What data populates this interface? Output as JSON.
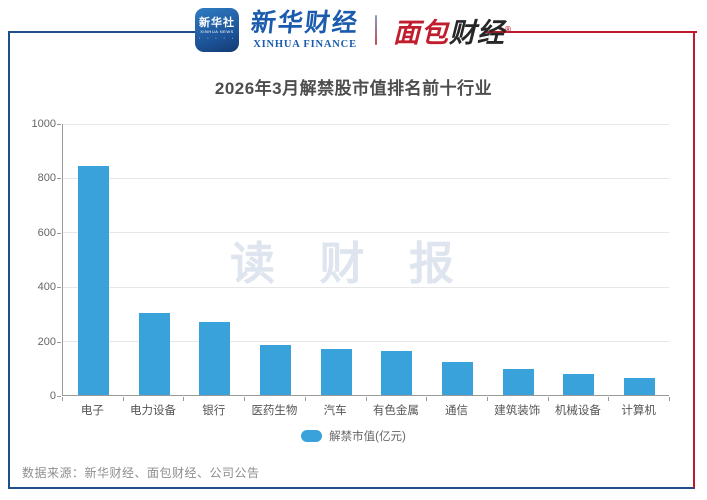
{
  "header": {
    "xinhua_icon": {
      "line1": "新华社",
      "line2": "XINHUA NEWS",
      "dots": "· · ∙ · ·"
    },
    "xinhua_finance": {
      "cn": "新华财经",
      "en": "XINHUA FINANCE"
    },
    "bread_finance": {
      "part1": "面包",
      "part2": "财经",
      "reg": "®"
    }
  },
  "title": "2026年3月解禁股市值排名前十行业",
  "watermark": "读 财 报",
  "chart_data": {
    "type": "bar",
    "categories": [
      "电子",
      "电力设备",
      "银行",
      "医药生物",
      "汽车",
      "有色金属",
      "通信",
      "建筑装饰",
      "机械设备",
      "计算机"
    ],
    "values": [
      843,
      303,
      269,
      184,
      168,
      163,
      123,
      96,
      79,
      64
    ],
    "title": "2026年3月解禁股市值排名前十行业",
    "xlabel": "",
    "ylabel": "",
    "ylim": [
      0,
      1000
    ],
    "yticks": [
      0,
      200,
      400,
      600,
      800,
      1000
    ],
    "legend": [
      "解禁市值(亿元)"
    ],
    "legend_position": "bottom",
    "grid": true,
    "bar_color": "#3AA2DB"
  },
  "legend_label": "解禁市值(亿元)",
  "footer": {
    "source": "数据来源：新华财经、面包财经、公司公告"
  },
  "colors": {
    "bar": "#3AA2DB",
    "frame_blue": "#1F4E8C",
    "frame_red": "#C0182C",
    "grid": "#E7E7E7",
    "watermark": "#DFE5EF"
  }
}
